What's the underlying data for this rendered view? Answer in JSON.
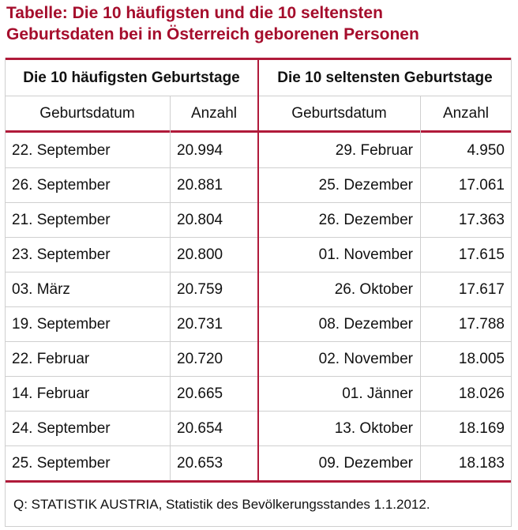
{
  "title": [
    "Tabelle: Die 10 häufigsten und die 10 seltensten",
    "Geburtsdaten bei in Österreich geborenen Personen"
  ],
  "table": {
    "groups": [
      "Die 10 häufigsten Geburtstage",
      "Die 10 seltensten Geburtstage"
    ],
    "columns": [
      "Geburtsdatum",
      "Anzahl",
      "Geburtsdatum",
      "Anzahl"
    ],
    "rows": [
      [
        "22. September",
        "20.994",
        "29. Februar",
        "4.950"
      ],
      [
        "26. September",
        "20.881",
        "25. Dezember",
        "17.061"
      ],
      [
        "21. September",
        "20.804",
        "26. Dezember",
        "17.363"
      ],
      [
        "23. September",
        "20.800",
        "01. November",
        "17.615"
      ],
      [
        "03. März",
        "20.759",
        "26. Oktober",
        "17.617"
      ],
      [
        "19. September",
        "20.731",
        "08. Dezember",
        "17.788"
      ],
      [
        "22. Februar",
        "20.720",
        "02. November",
        "18.005"
      ],
      [
        "14. Februar",
        "20.665",
        "01. Jänner",
        "18.026"
      ],
      [
        "24. September",
        "20.654",
        "13. Oktober",
        "18.169"
      ],
      [
        "25. September",
        "20.653",
        "09. Dezember",
        "18.183"
      ]
    ],
    "source": "Q: STATISTIK AUSTRIA, Statistik des Bevölkerungsstandes 1.1.2012."
  }
}
